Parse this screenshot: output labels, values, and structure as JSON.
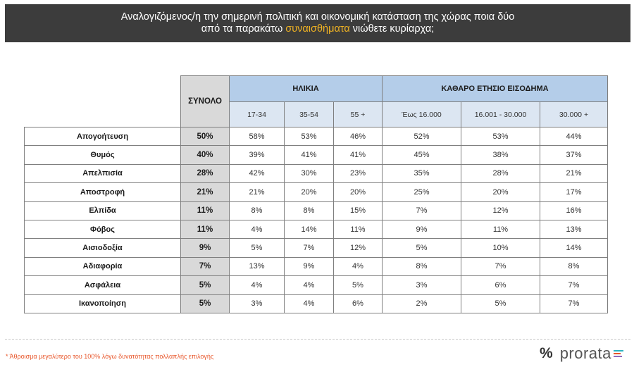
{
  "header": {
    "line1": "Αναλογιζόμενος/η την σημερινή πολιτική και οικονομική κατάσταση της χώρας ποια δύο",
    "line2_pre": "από τα παρακάτω ",
    "line2_highlight": "συναισθήματα",
    "line2_post": " νιώθετε κυρίαρχα;"
  },
  "table": {
    "total_header": "ΣΥΝΟΛΟ",
    "age_header": "ΗΛΙΚΙΑ",
    "income_header": "ΚΑΘΑΡΟ ΕΤΗΣΙΟ ΕΙΣΟΔΗΜΑ",
    "age_groups": [
      "17-34",
      "35-54",
      "55 +"
    ],
    "income_groups": [
      "Έως 16.000",
      "16.001 - 30.000",
      "30.000 +"
    ],
    "rows": [
      {
        "label": "Απογοήτευση",
        "total": "50%",
        "age": [
          "58%",
          "53%",
          "46%"
        ],
        "income": [
          "52%",
          "53%",
          "44%"
        ]
      },
      {
        "label": "Θυμός",
        "total": "40%",
        "age": [
          "39%",
          "41%",
          "41%"
        ],
        "income": [
          "45%",
          "38%",
          "37%"
        ]
      },
      {
        "label": "Απελπισία",
        "total": "28%",
        "age": [
          "42%",
          "30%",
          "23%"
        ],
        "income": [
          "35%",
          "28%",
          "21%"
        ]
      },
      {
        "label": "Αποστροφή",
        "total": "21%",
        "age": [
          "21%",
          "20%",
          "20%"
        ],
        "income": [
          "25%",
          "20%",
          "17%"
        ]
      },
      {
        "label": "Ελπίδα",
        "total": "11%",
        "age": [
          "8%",
          "8%",
          "15%"
        ],
        "income": [
          "7%",
          "12%",
          "16%"
        ]
      },
      {
        "label": "Φόβος",
        "total": "11%",
        "age": [
          "4%",
          "14%",
          "11%"
        ],
        "income": [
          "9%",
          "11%",
          "13%"
        ]
      },
      {
        "label": "Αισιοδοξία",
        "total": "9%",
        "age": [
          "5%",
          "7%",
          "12%"
        ],
        "income": [
          "5%",
          "10%",
          "14%"
        ]
      },
      {
        "label": "Αδιαφορία",
        "total": "7%",
        "age": [
          "13%",
          "9%",
          "4%"
        ],
        "income": [
          "8%",
          "7%",
          "8%"
        ]
      },
      {
        "label": "Ασφάλεια",
        "total": "5%",
        "age": [
          "4%",
          "4%",
          "5%"
        ],
        "income": [
          "3%",
          "6%",
          "7%"
        ]
      },
      {
        "label": "Ικανοποίηση",
        "total": "5%",
        "age": [
          "3%",
          "4%",
          "6%"
        ],
        "income": [
          "2%",
          "5%",
          "7%"
        ]
      }
    ]
  },
  "footnote": "* Άθροισμα μεγαλύτερο του 100% λόγω δυνατότητας πολλαπλής επιλογής",
  "logo": {
    "symbol": "%",
    "name": "prorata"
  },
  "colors": {
    "header_bg": "#3c3c3c",
    "highlight": "#f0b323",
    "group_header_bg": "#b4cde9",
    "sub_header_bg": "#dce6f2",
    "total_bg": "#d9d9d9",
    "footnote": "#e8562a",
    "logo_bars": [
      "#2bb3c0",
      "#e8562a",
      "#8e6bbf"
    ]
  }
}
